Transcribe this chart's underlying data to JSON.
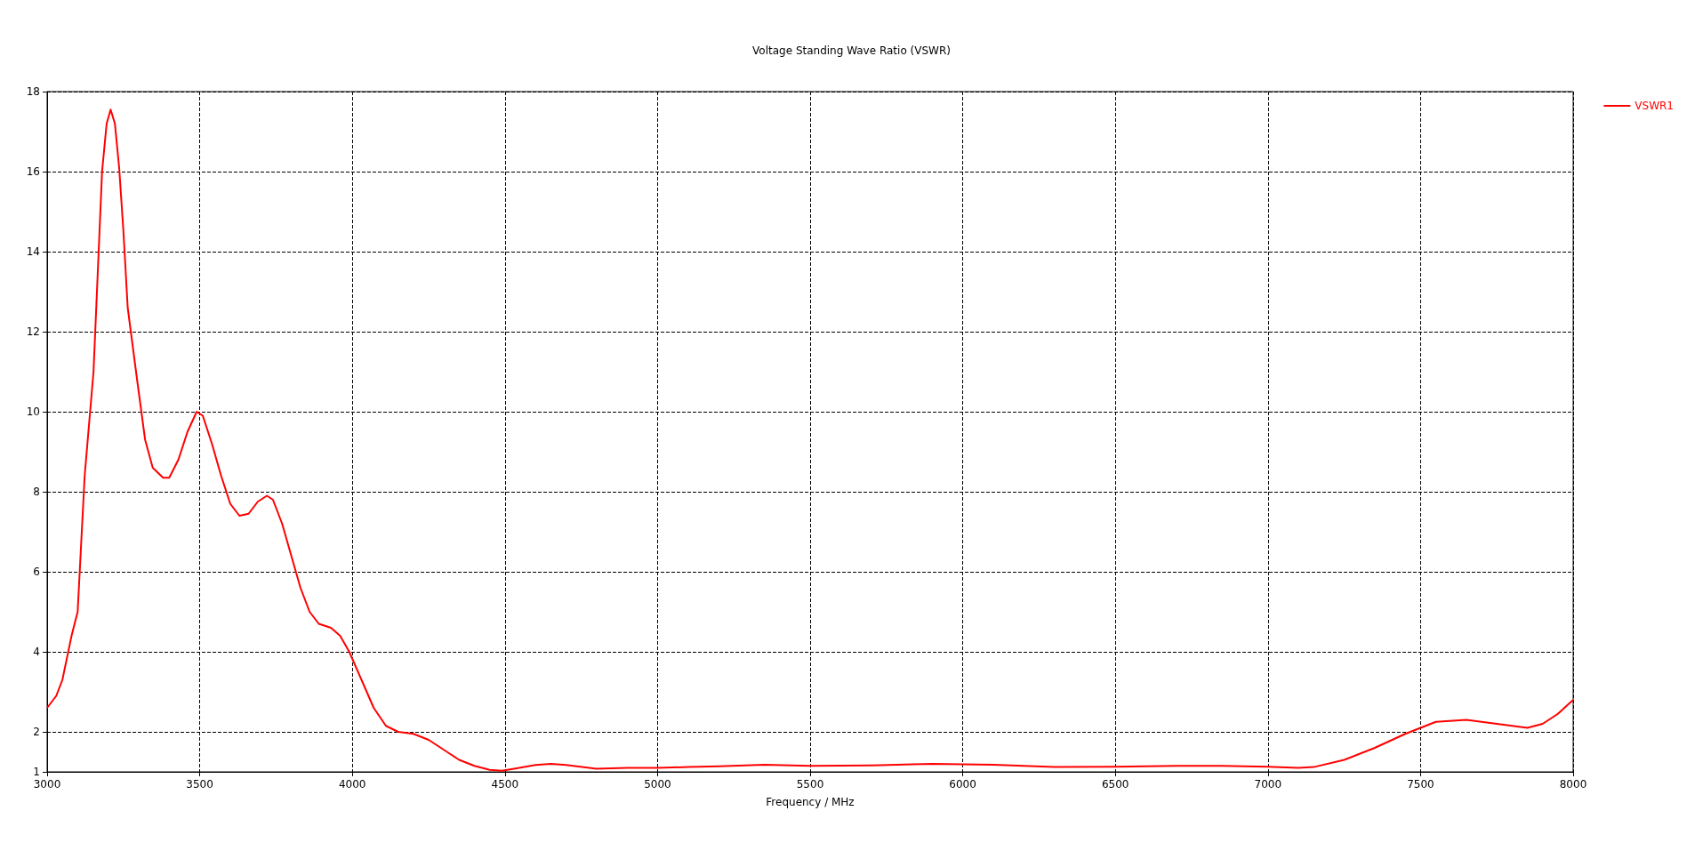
{
  "chart_data": {
    "type": "line",
    "title": "Voltage Standing Wave Ratio (VSWR)",
    "xlabel": "Frequency / MHz",
    "xlim": [
      3000,
      8000
    ],
    "xticks": [
      3000,
      3500,
      4000,
      4500,
      5000,
      5500,
      6000,
      6500,
      7000,
      7500,
      8000
    ],
    "ylim": [
      1,
      18
    ],
    "yticks": [
      1,
      2,
      4,
      6,
      8,
      10,
      12,
      14,
      16,
      18
    ],
    "grid": true,
    "legend": "top right",
    "marker": "none",
    "line_style": "solid",
    "series": [
      {
        "name": "VSWR1",
        "color": "#ff0000",
        "x": [
          3000,
          3030,
          3050,
          3080,
          3100,
          3123,
          3152,
          3180,
          3195,
          3208,
          3222,
          3236,
          3250,
          3264,
          3293,
          3321,
          3346,
          3380,
          3400,
          3430,
          3460,
          3490,
          3510,
          3540,
          3570,
          3600,
          3630,
          3660,
          3690,
          3720,
          3740,
          3770,
          3800,
          3830,
          3860,
          3890,
          3930,
          3960,
          3990,
          4030,
          4070,
          4110,
          4150,
          4200,
          4250,
          4300,
          4350,
          4400,
          4450,
          4490,
          4530,
          4600,
          4650,
          4700,
          4800,
          4900,
          5000,
          5100,
          5200,
          5350,
          5500,
          5700,
          5900,
          6100,
          6300,
          6500,
          6700,
          6850,
          7000,
          7100,
          7150,
          7250,
          7350,
          7450,
          7550,
          7650,
          7750,
          7850,
          7900,
          7950,
          8000
        ],
        "values": [
          2.6,
          2.9,
          3.3,
          4.4,
          5.0,
          8.4,
          11.0,
          16.0,
          17.2,
          17.55,
          17.2,
          16.1,
          14.5,
          12.6,
          10.9,
          9.3,
          8.6,
          8.35,
          8.35,
          8.8,
          9.5,
          10.0,
          9.9,
          9.2,
          8.4,
          7.7,
          7.4,
          7.45,
          7.75,
          7.9,
          7.8,
          7.2,
          6.4,
          5.6,
          5.0,
          4.7,
          4.6,
          4.4,
          4.0,
          3.3,
          2.6,
          2.15,
          2.0,
          1.95,
          1.8,
          1.55,
          1.3,
          1.15,
          1.05,
          1.03,
          1.08,
          1.17,
          1.2,
          1.17,
          1.08,
          1.1,
          1.1,
          1.12,
          1.14,
          1.18,
          1.15,
          1.16,
          1.2,
          1.18,
          1.12,
          1.13,
          1.15,
          1.15,
          1.13,
          1.1,
          1.12,
          1.3,
          1.6,
          1.95,
          2.25,
          2.3,
          2.2,
          2.1,
          2.2,
          2.45,
          2.8
        ]
      }
    ]
  }
}
